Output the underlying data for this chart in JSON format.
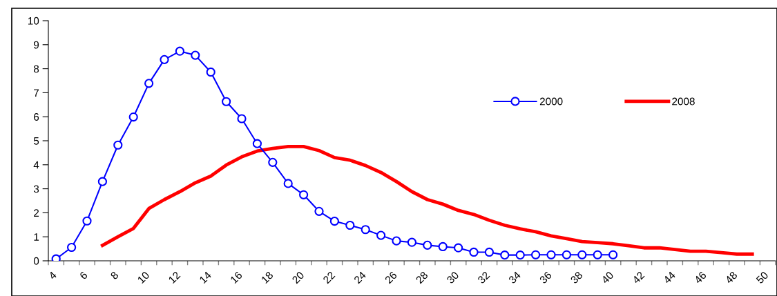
{
  "chart_data": {
    "type": "line",
    "categories": [
      "4",
      null,
      "6",
      null,
      "8",
      null,
      "10",
      null,
      "12",
      null,
      "14",
      null,
      "16",
      null,
      "18",
      null,
      "20",
      null,
      "22",
      null,
      "24",
      null,
      "26",
      null,
      "28",
      null,
      "30",
      null,
      "32",
      null,
      "34",
      null,
      "36",
      null,
      "38",
      null,
      "40",
      null,
      "42",
      null,
      "44",
      null,
      "46",
      null,
      "48",
      null,
      "50"
    ],
    "series": [
      {
        "name": "2000",
        "color": "#0000ff",
        "marker": "circle",
        "values": [
          0.08,
          0.56,
          1.66,
          3.3,
          4.82,
          5.99,
          7.39,
          8.38,
          8.73,
          8.56,
          7.86,
          6.63,
          5.92,
          4.88,
          4.1,
          3.22,
          2.75,
          2.06,
          1.65,
          1.48,
          1.3,
          1.06,
          0.83,
          0.77,
          0.65,
          0.59,
          0.54,
          0.36,
          0.36,
          0.24,
          0.24,
          0.25,
          0.25,
          0.25,
          0.25,
          0.25,
          0.25,
          null,
          null,
          null,
          null,
          null,
          null,
          null,
          null,
          null,
          null
        ]
      },
      {
        "name": "2008",
        "color": "#ff0000",
        "marker": "none",
        "values": [
          null,
          null,
          null,
          0.64,
          1.0,
          1.35,
          2.18,
          2.55,
          2.88,
          3.25,
          3.53,
          3.99,
          4.33,
          4.57,
          4.68,
          4.76,
          4.76,
          4.59,
          4.3,
          4.19,
          3.97,
          3.68,
          3.3,
          2.88,
          2.55,
          2.36,
          2.1,
          1.93,
          1.69,
          1.48,
          1.33,
          1.21,
          1.04,
          0.92,
          0.8,
          0.76,
          0.71,
          0.63,
          0.54,
          0.54,
          0.47,
          0.4,
          0.4,
          0.34,
          0.28,
          0.28,
          null
        ]
      }
    ],
    "ylim": [
      0,
      10
    ],
    "yticks": [
      0,
      1,
      2,
      3,
      4,
      5,
      6,
      7,
      8,
      9,
      10
    ],
    "grid": false,
    "legend": "right"
  }
}
